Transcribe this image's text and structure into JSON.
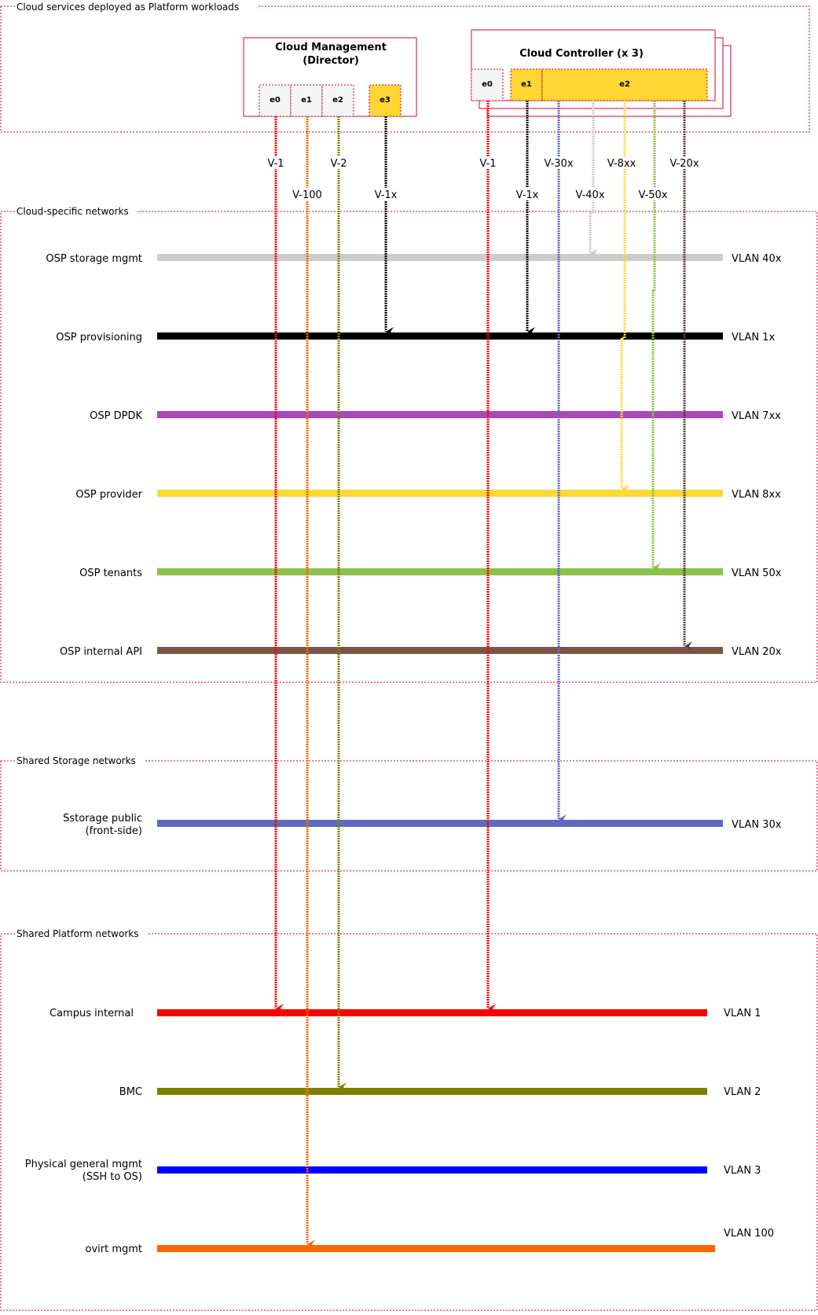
{
  "groups": {
    "platform_workloads": "Cloud services deployed as Platform workloads",
    "cloud_specific": "Cloud-specific networks",
    "shared_storage": "Shared Storage networks",
    "shared_platform": "Shared Platform networks"
  },
  "nodes": {
    "director": {
      "title_line1": "Cloud Management",
      "title_line2": "(Director)",
      "ports": [
        "e0",
        "e1",
        "e2",
        "e3"
      ]
    },
    "controller": {
      "title": "Cloud Controller (x 3)",
      "ports": [
        "e0",
        "e1",
        "e2"
      ]
    }
  },
  "vlan_links": {
    "director": [
      "V-1",
      "V-100",
      "V-2",
      "V-1x"
    ],
    "controller": [
      "V-1",
      "V-1x",
      "V-30x",
      "V-40x",
      "V-8xx",
      "V-50x",
      "V-20x"
    ]
  },
  "networks": [
    {
      "name": "OSP storage mgmt",
      "vlan": "VLAN 40x",
      "color": "#cccccc"
    },
    {
      "name": "OSP provisioning",
      "vlan": "VLAN 1x",
      "color": "#000000"
    },
    {
      "name": "OSP DPDK",
      "vlan": "VLAN 7xx",
      "color": "#ab47bc"
    },
    {
      "name": "OSP provider",
      "vlan": "VLAN 8xx",
      "color": "#fdd835"
    },
    {
      "name": "OSP tenants",
      "vlan": "VLAN 50x",
      "color": "#8bc34a"
    },
    {
      "name": "OSP internal API",
      "vlan": "VLAN 20x",
      "color": "#795548"
    },
    {
      "name_line1": "Sstorage public",
      "name_line2": "(front-side)",
      "vlan": "VLAN 30x",
      "color": "#5c6bc0"
    },
    {
      "name": "Campus internal",
      "vlan": "VLAN 1",
      "color": "#ff0000"
    },
    {
      "name": "BMC",
      "vlan": "VLAN 2",
      "color": "#808000"
    },
    {
      "name_line1": "Physical general mgmt",
      "name_line2": "(SSH to OS)",
      "vlan": "VLAN 3",
      "color": "#0000ff"
    },
    {
      "name": "ovirt mgmt",
      "vlan": "VLAN 100",
      "color": "#ff6600"
    }
  ],
  "colors": {
    "group_border": "#cc0033",
    "port_highlight": "#ffd633",
    "port_default": "#f5f5f5"
  }
}
